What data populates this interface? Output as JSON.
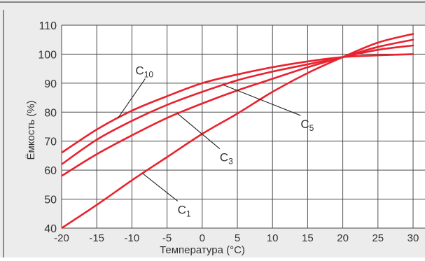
{
  "colors": {
    "background": "#ececec",
    "plot_background": "#ffffff",
    "grid": "#4a4a4a",
    "curve": "#e8232f",
    "text": "#333333"
  },
  "chart_data": {
    "type": "line",
    "title": "",
    "xlabel": "Температура (°C)",
    "ylabel": "Ёмкость (%)",
    "x_ticks": [
      "-20",
      "-15",
      "-10",
      "-5",
      "0",
      "5",
      "10",
      "15",
      "20",
      "25",
      "30"
    ],
    "y_ticks": [
      "40",
      "50",
      "60",
      "70",
      "80",
      "90",
      "100",
      "110"
    ],
    "xlim": [
      -20,
      30
    ],
    "ylim": [
      40,
      110
    ],
    "grid": true,
    "series": [
      {
        "name": "C10",
        "label_main": "C",
        "label_sub": "10",
        "x": [
          -20,
          -15,
          -10,
          -5,
          0,
          5,
          10,
          15,
          20,
          25,
          30
        ],
        "y": [
          66,
          74,
          80.5,
          85.5,
          90,
          93,
          95.5,
          97.5,
          99,
          99.6,
          100
        ]
      },
      {
        "name": "C5",
        "label_main": "C",
        "label_sub": "5",
        "x": [
          -20,
          -15,
          -10,
          -5,
          0,
          5,
          10,
          15,
          20,
          25,
          30
        ],
        "y": [
          62,
          70.5,
          77,
          82.5,
          87,
          91,
          94,
          96.5,
          99,
          101.5,
          103
        ]
      },
      {
        "name": "C3",
        "label_main": "C",
        "label_sub": "3",
        "x": [
          -20,
          -15,
          -10,
          -5,
          0,
          5,
          10,
          15,
          20,
          25,
          30
        ],
        "y": [
          58,
          65.5,
          72,
          78,
          83,
          87.5,
          91.5,
          95.5,
          99,
          102.5,
          105
        ]
      },
      {
        "name": "C1",
        "label_main": "C",
        "label_sub": "1",
        "x": [
          -20,
          -15,
          -10,
          -5,
          0,
          5,
          10,
          15,
          20,
          25,
          30
        ],
        "y": [
          40,
          48,
          56.5,
          64.5,
          72.5,
          79.5,
          87,
          93.5,
          99,
          104,
          107
        ]
      }
    ],
    "annotations": [
      {
        "series": "C10",
        "at_x": -12,
        "label_x": -9.5,
        "label_y": 93
      },
      {
        "series": "C5",
        "at_x": 3,
        "label_x": 14,
        "label_y": 74.5
      },
      {
        "series": "C3",
        "at_x": -3.5,
        "label_x": 2.5,
        "label_y": 63
      },
      {
        "series": "C1",
        "at_x": -8.5,
        "label_x": -3.5,
        "label_y": 45
      }
    ]
  }
}
